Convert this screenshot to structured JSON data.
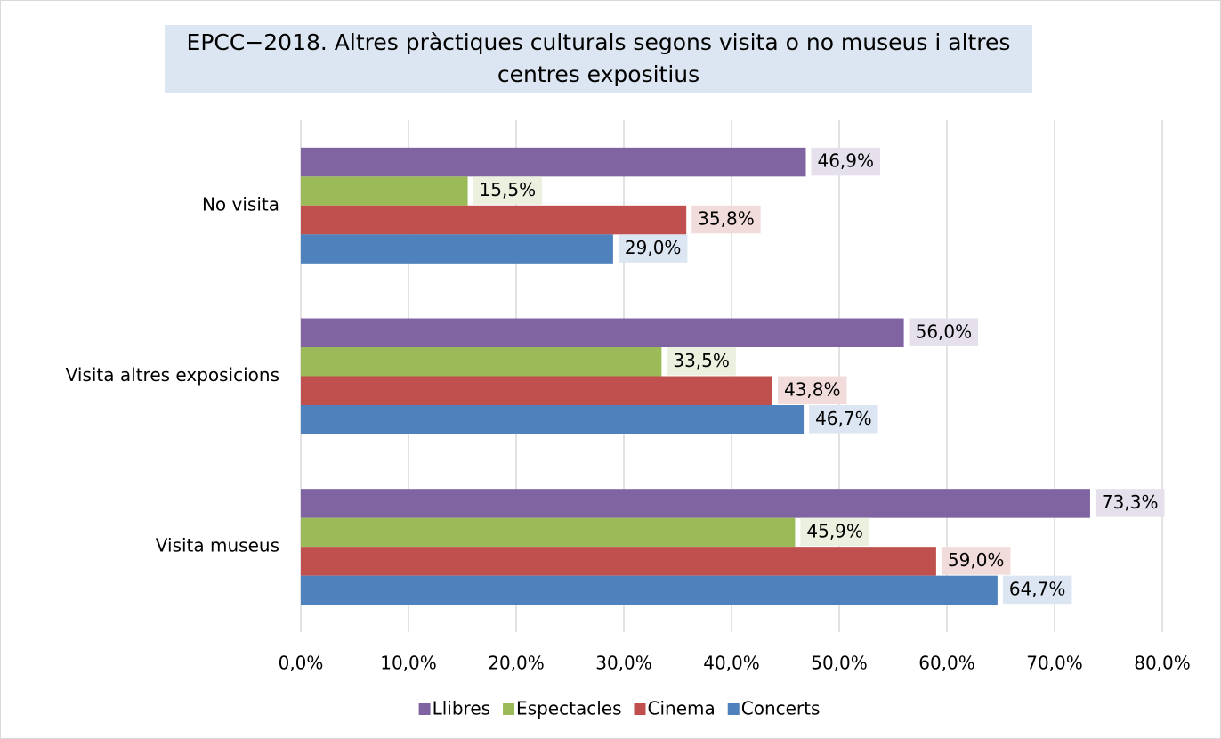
{
  "chart_data": {
    "type": "hbar",
    "title": "EPCC−2018. Altres pràctiques culturals segons visita o no museus i altres centres expositius",
    "categories": [
      "No visita",
      "Visita altres exposicions",
      "Visita museus"
    ],
    "series": [
      {
        "name": "Llibres",
        "color": "#8064a2",
        "label_color": "#e5e0ec",
        "values": [
          46.9,
          56.0,
          73.3
        ],
        "value_labels": [
          "46,9%",
          "56,0%",
          "73,3%"
        ]
      },
      {
        "name": "Espectacles",
        "color": "#9bbb59",
        "label_color": "#ebf1de",
        "values": [
          15.5,
          33.5,
          45.9
        ],
        "value_labels": [
          "15,5%",
          "33,5%",
          "45,9%"
        ]
      },
      {
        "name": "Cinema",
        "color": "#c0504d",
        "label_color": "#f2dcdb",
        "values": [
          35.8,
          43.8,
          59.0
        ],
        "value_labels": [
          "35,8%",
          "43,8%",
          "59,0%"
        ]
      },
      {
        "name": "Concerts",
        "color": "#4f81bd",
        "label_color": "#dce6f2",
        "values": [
          29.0,
          46.7,
          64.7
        ],
        "value_labels": [
          "29,0%",
          "46,7%",
          "64,7%"
        ]
      }
    ],
    "xlim": [
      0,
      80
    ],
    "xticks": [
      {
        "value": 0,
        "label": "0,0%"
      },
      {
        "value": 10,
        "label": "10,0%"
      },
      {
        "value": 20,
        "label": "20,0%"
      },
      {
        "value": 30,
        "label": "30,0%"
      },
      {
        "value": 40,
        "label": "40,0%"
      },
      {
        "value": 50,
        "label": "50,0%"
      },
      {
        "value": 60,
        "label": "60,0%"
      },
      {
        "value": 70,
        "label": "70,0%"
      },
      {
        "value": 80,
        "label": "80,0%"
      }
    ],
    "grid": true,
    "legend": "bottom"
  }
}
